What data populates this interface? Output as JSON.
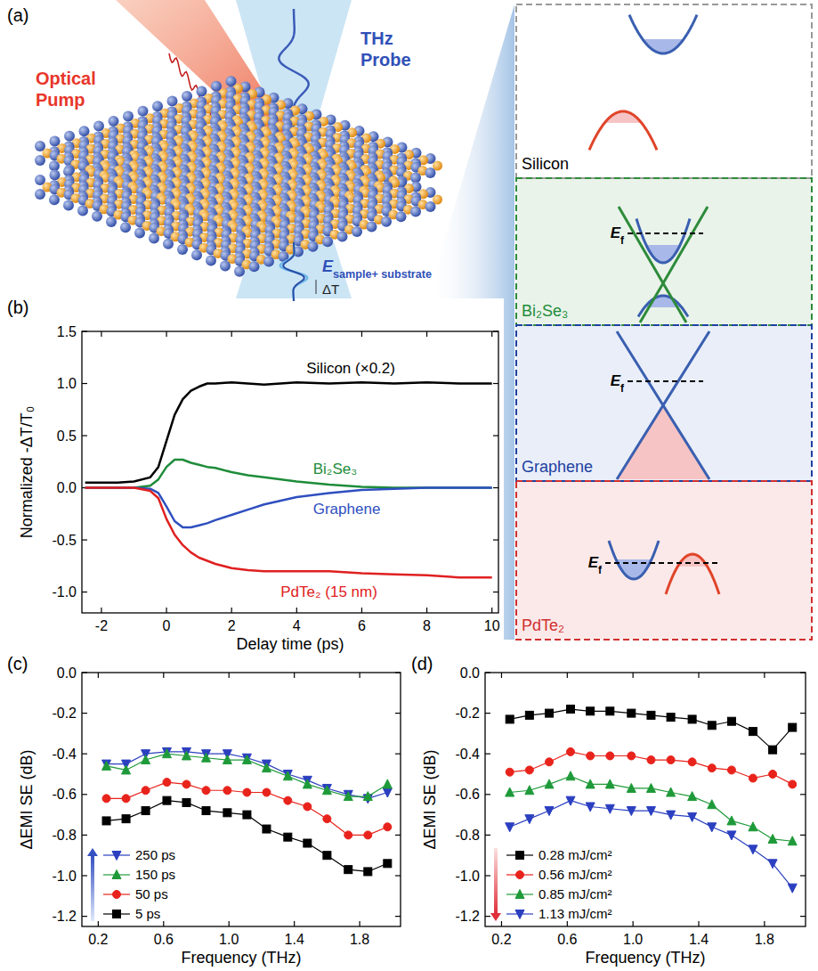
{
  "schematic": {
    "panel_label": "(a)",
    "pump_label": "Optical Pump",
    "probe_label": "THz Probe",
    "field_label": {
      "base": "E",
      "sub": "sample+ substrate"
    },
    "delta_label": "ΔT"
  },
  "bands": {
    "materials": [
      {
        "name": "Silicon"
      },
      {
        "name": "Bi₂Se₃",
        "fermi": {
          "base": "E",
          "sub": "f"
        }
      },
      {
        "name": "Graphene",
        "fermi": {
          "base": "E",
          "sub": "f"
        }
      },
      {
        "name": "PdTe₂",
        "fermi": {
          "base": "E",
          "sub": "f"
        }
      }
    ]
  },
  "chart_data": [
    {
      "type": "line",
      "panel_label": "(b)",
      "x_label": "Delay time (ps)",
      "y_label": "Normalized -ΔT/T₀",
      "x": [
        -2.5,
        -2,
        -1.5,
        -1,
        -0.5,
        -0.25,
        0,
        0.25,
        0.5,
        0.75,
        1,
        1.25,
        1.5,
        2,
        2.5,
        3,
        4,
        5,
        6,
        7,
        8,
        9,
        10
      ],
      "xlim": [
        -2.6,
        10.2
      ],
      "xticks": [
        -2,
        0,
        2,
        4,
        6,
        8,
        10
      ],
      "ylim": [
        -1.2,
        1.5
      ],
      "yticks": [
        {
          "value": -1,
          "label": "-1.0"
        },
        {
          "value": -0.5,
          "label": "-0.5"
        },
        {
          "value": 0,
          "label": "0.0"
        },
        {
          "value": 0.5,
          "label": "0.5"
        },
        {
          "value": 1,
          "label": "1.0"
        },
        {
          "value": 1.5,
          "label": "1.5"
        }
      ],
      "series": [
        {
          "name": "Silicon (×0.2)",
          "color": "#000000",
          "values": [
            0.05,
            0.05,
            0.05,
            0.06,
            0.1,
            0.2,
            0.45,
            0.7,
            0.85,
            0.93,
            0.97,
            1.0,
            1.0,
            1.01,
            1.0,
            0.99,
            1.01,
            1.0,
            1.01,
            1.0,
            1.01,
            1.0,
            1.0
          ]
        },
        {
          "name": "Bi₂Se₃",
          "color": "#1e8c3a",
          "values": [
            0,
            0,
            0,
            0,
            0.02,
            0.08,
            0.2,
            0.27,
            0.27,
            0.24,
            0.22,
            0.2,
            0.19,
            0.15,
            0.12,
            0.1,
            0.06,
            0.03,
            0.01,
            0,
            0,
            0,
            0
          ]
        },
        {
          "name": "Graphene",
          "color": "#2f4fbf",
          "values": [
            0,
            0,
            0,
            0,
            -0.01,
            -0.05,
            -0.18,
            -0.32,
            -0.38,
            -0.38,
            -0.36,
            -0.34,
            -0.31,
            -0.26,
            -0.21,
            -0.16,
            -0.09,
            -0.05,
            -0.02,
            -0.01,
            0,
            0,
            0
          ]
        },
        {
          "name": "PdTe₂ (15 nm)",
          "color": "#e02020",
          "values": [
            0,
            0,
            0,
            0,
            -0.03,
            -0.1,
            -0.3,
            -0.45,
            -0.55,
            -0.62,
            -0.67,
            -0.7,
            -0.73,
            -0.77,
            -0.79,
            -0.8,
            -0.8,
            -0.8,
            -0.82,
            -0.83,
            -0.84,
            -0.86,
            -0.86
          ]
        }
      ]
    },
    {
      "type": "line",
      "panel_label": "(c)",
      "x_label": "Frequency (THz)",
      "y_label": "ΔEMI SE (dB)",
      "legend": "lower left",
      "x": [
        0.25,
        0.37,
        0.49,
        0.62,
        0.74,
        0.86,
        0.99,
        1.11,
        1.23,
        1.36,
        1.48,
        1.6,
        1.73,
        1.85,
        1.97
      ],
      "xlim": [
        0.1,
        2.05
      ],
      "xticks": [
        0.2,
        0.6,
        {
          "value": 1,
          "label": "1.0"
        },
        1.4,
        1.8
      ],
      "ylim": [
        -1.25,
        0
      ],
      "yticks": [
        {
          "value": 0,
          "label": "0.0"
        },
        {
          "value": -0.2,
          "label": "-0.2"
        },
        {
          "value": -0.4,
          "label": "-0.4"
        },
        {
          "value": -0.6,
          "label": "-0.6"
        },
        {
          "value": -0.8,
          "label": "-0.8"
        },
        {
          "value": -1,
          "label": "-1.0"
        },
        {
          "value": -1.2,
          "label": "-1.2"
        }
      ],
      "series": [
        {
          "name": "250 ps",
          "color": "#2b3fc0",
          "marker": "triangle-down",
          "values": [
            -0.45,
            -0.45,
            -0.4,
            -0.39,
            -0.39,
            -0.4,
            -0.4,
            -0.42,
            -0.45,
            -0.5,
            -0.53,
            -0.57,
            -0.6,
            -0.62,
            -0.59
          ]
        },
        {
          "name": "150 ps",
          "color": "#1f9a3a",
          "marker": "triangle-up",
          "values": [
            -0.46,
            -0.48,
            -0.43,
            -0.4,
            -0.41,
            -0.42,
            -0.43,
            -0.43,
            -0.47,
            -0.51,
            -0.55,
            -0.58,
            -0.61,
            -0.61,
            -0.55
          ]
        },
        {
          "name": "50 ps",
          "color": "#e8231c",
          "marker": "circle",
          "values": [
            -0.62,
            -0.62,
            -0.58,
            -0.54,
            -0.55,
            -0.58,
            -0.58,
            -0.59,
            -0.59,
            -0.63,
            -0.66,
            -0.72,
            -0.8,
            -0.8,
            -0.76
          ]
        },
        {
          "name": "5 ps",
          "color": "#000000",
          "marker": "square",
          "values": [
            -0.73,
            -0.72,
            -0.68,
            -0.63,
            -0.64,
            -0.68,
            -0.69,
            -0.7,
            -0.77,
            -0.81,
            -0.84,
            -0.9,
            -0.97,
            -0.98,
            -0.94
          ]
        }
      ]
    },
    {
      "type": "line",
      "panel_label": "(d)",
      "x_label": "Frequency (THz)",
      "y_label": "ΔEMI SE (dB)",
      "legend": "lower left",
      "x": [
        0.25,
        0.37,
        0.49,
        0.62,
        0.74,
        0.86,
        0.99,
        1.11,
        1.23,
        1.36,
        1.48,
        1.6,
        1.73,
        1.85,
        1.97
      ],
      "xlim": [
        0.1,
        2.05
      ],
      "xticks": [
        0.2,
        0.6,
        {
          "value": 1,
          "label": "1.0"
        },
        1.4,
        1.8
      ],
      "ylim": [
        -1.25,
        0
      ],
      "yticks": [
        {
          "value": 0,
          "label": "0.0"
        },
        {
          "value": -0.2,
          "label": "-0.2"
        },
        {
          "value": -0.4,
          "label": "-0.4"
        },
        {
          "value": -0.6,
          "label": "-0.6"
        },
        {
          "value": -0.8,
          "label": "-0.8"
        },
        {
          "value": -1,
          "label": "-1.0"
        },
        {
          "value": -1.2,
          "label": "-1.2"
        }
      ],
      "series": [
        {
          "name": "0.28 mJ/cm²",
          "color": "#000000",
          "marker": "square",
          "values": [
            -0.23,
            -0.21,
            -0.2,
            -0.18,
            -0.19,
            -0.19,
            -0.2,
            -0.21,
            -0.22,
            -0.23,
            -0.26,
            -0.24,
            -0.29,
            -0.38,
            -0.27
          ]
        },
        {
          "name": "0.56 mJ/cm²",
          "color": "#e8231c",
          "marker": "circle",
          "values": [
            -0.49,
            -0.48,
            -0.44,
            -0.39,
            -0.41,
            -0.41,
            -0.41,
            -0.43,
            -0.43,
            -0.44,
            -0.47,
            -0.48,
            -0.52,
            -0.5,
            -0.55
          ]
        },
        {
          "name": "0.85 mJ/cm²",
          "color": "#1f9a3a",
          "marker": "triangle-up",
          "values": [
            -0.59,
            -0.58,
            -0.55,
            -0.51,
            -0.55,
            -0.55,
            -0.57,
            -0.57,
            -0.59,
            -0.61,
            -0.65,
            -0.73,
            -0.76,
            -0.82,
            -0.83
          ]
        },
        {
          "name": "1.13 mJ/cm²",
          "color": "#2b3fc0",
          "marker": "triangle-down",
          "values": [
            -0.76,
            -0.72,
            -0.68,
            -0.63,
            -0.66,
            -0.67,
            -0.68,
            -0.68,
            -0.7,
            -0.71,
            -0.76,
            -0.8,
            -0.87,
            -0.94,
            -1.06
          ]
        }
      ]
    }
  ]
}
